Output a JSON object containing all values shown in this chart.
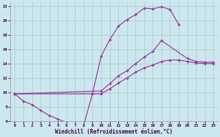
{
  "xlabel": "Windchill (Refroidissement éolien,°C)",
  "bg_color": "#cce8ee",
  "line_color": "#993399",
  "grid_color": "#aacccc",
  "xlim": [
    -0.5,
    23.5
  ],
  "ylim": [
    6,
    22.5
  ],
  "xticks": [
    0,
    1,
    2,
    3,
    4,
    5,
    6,
    7,
    8,
    9,
    10,
    11,
    12,
    13,
    14,
    15,
    16,
    17,
    18,
    19,
    20,
    21,
    22,
    23
  ],
  "yticks": [
    6,
    8,
    10,
    12,
    14,
    16,
    18,
    20,
    22
  ],
  "curve1_x": [
    0,
    1,
    2,
    3,
    4,
    5,
    6,
    7,
    8,
    9,
    10,
    11,
    12,
    13,
    14,
    15,
    16,
    17,
    18,
    19
  ],
  "curve1_y": [
    9.8,
    8.8,
    8.3,
    7.5,
    6.8,
    6.3,
    5.8,
    5.5,
    5.5,
    9.8,
    15.0,
    17.3,
    19.2,
    20.1,
    20.8,
    21.7,
    21.6,
    21.9,
    21.5,
    19.4
  ],
  "curve2_x": [
    0,
    10,
    11,
    12,
    13,
    14,
    15,
    16,
    17,
    20,
    21,
    22,
    23
  ],
  "curve2_y": [
    9.8,
    10.2,
    11.2,
    12.3,
    13.0,
    14.0,
    14.9,
    15.7,
    17.2,
    14.7,
    14.3,
    14.2,
    14.2
  ],
  "curve3_x": [
    0,
    10,
    11,
    12,
    13,
    14,
    15,
    16,
    17,
    18,
    19,
    20,
    21,
    22,
    23
  ],
  "curve3_y": [
    9.8,
    9.8,
    10.5,
    11.3,
    12.0,
    12.8,
    13.4,
    13.8,
    14.3,
    14.5,
    14.5,
    14.3,
    14.1,
    14.0,
    14.0
  ]
}
